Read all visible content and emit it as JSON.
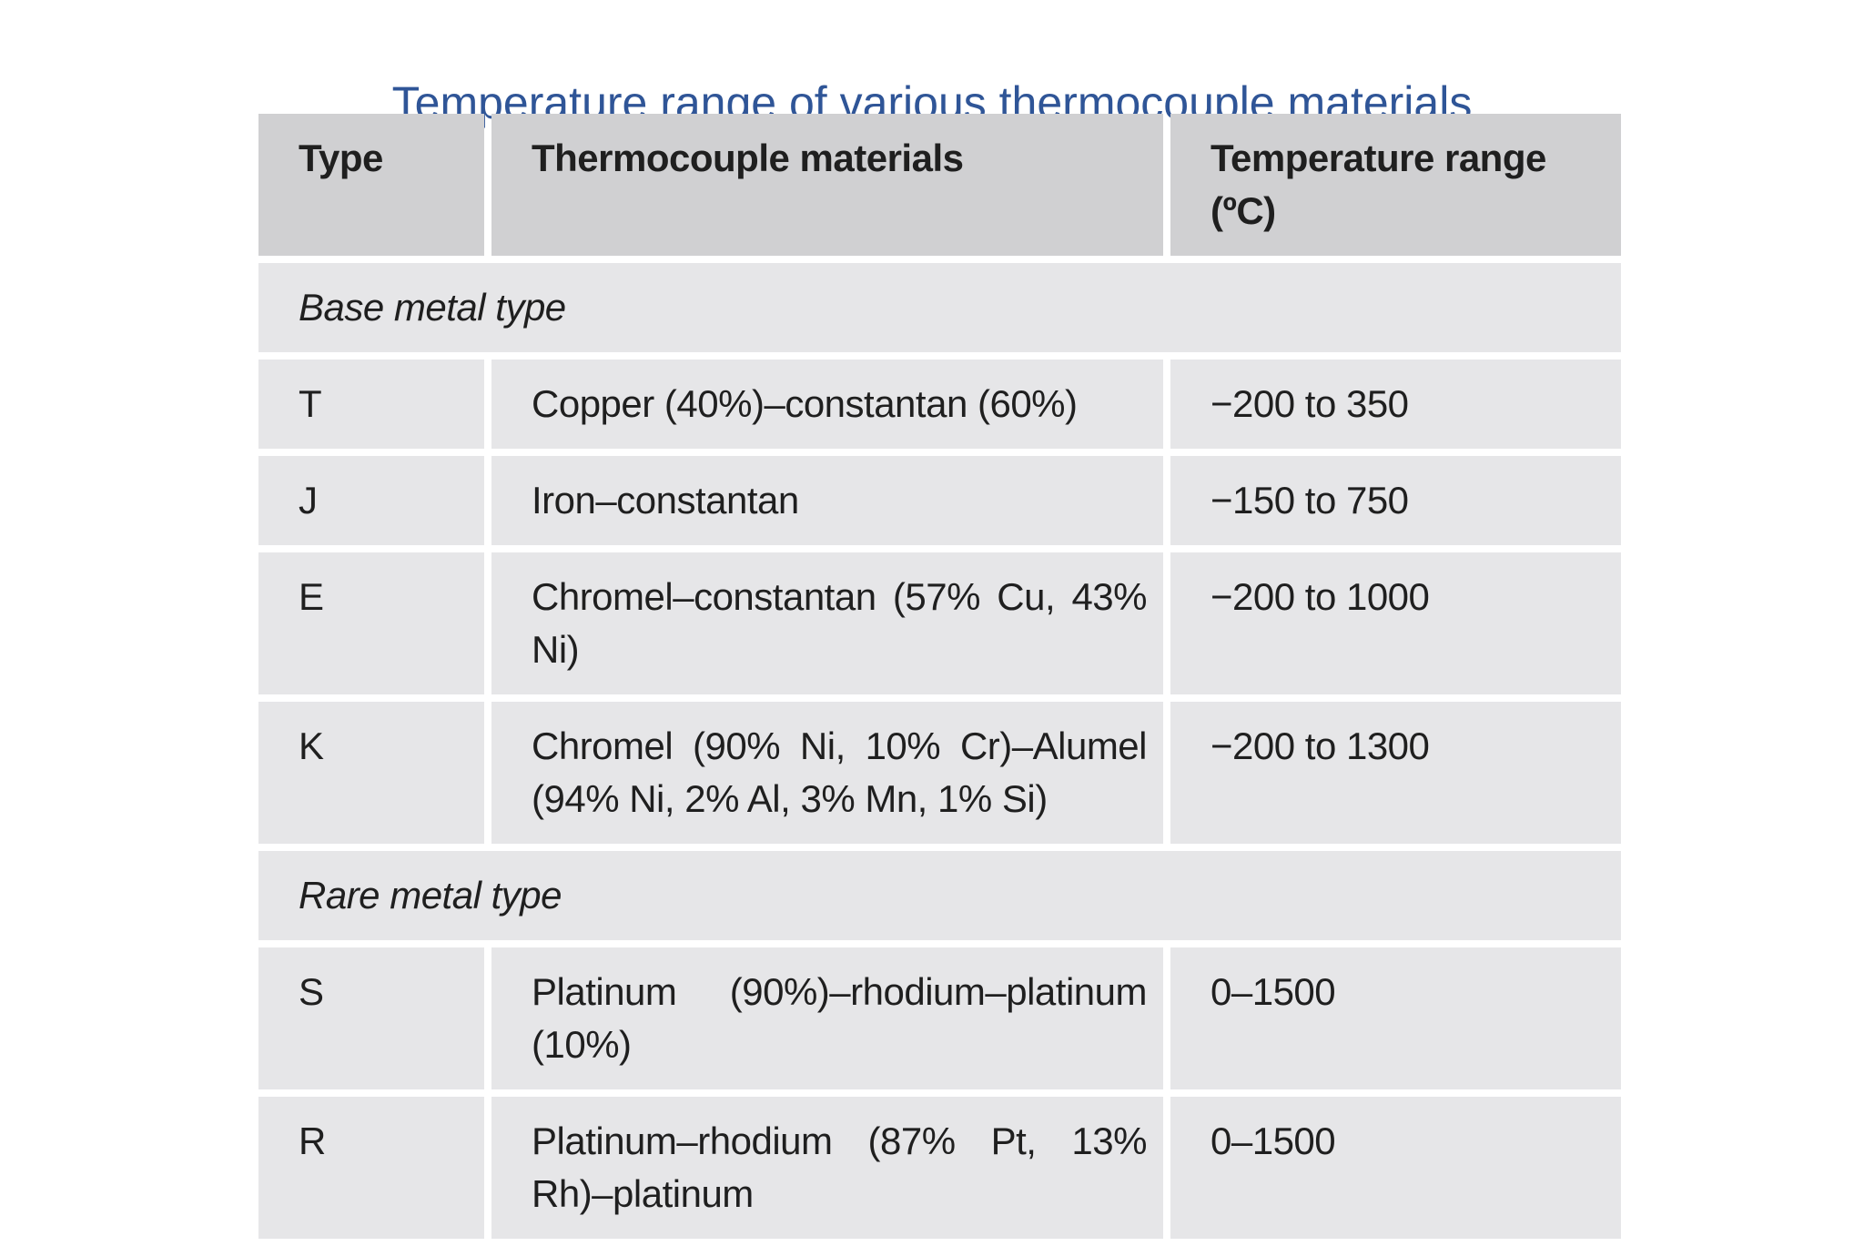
{
  "slide": {
    "title": "Temperature range of various thermocouple materials"
  },
  "table": {
    "headers": {
      "type": "Type",
      "materials": "Thermocouple materials",
      "range": "Temperature range (ºC)"
    },
    "groups": {
      "base": "Base metal type",
      "rare": "Rare metal type"
    },
    "rows": [
      {
        "type": "T",
        "materials": "Copper (40%)–constantan (60%)",
        "range": "−200 to 350"
      },
      {
        "type": "J",
        "materials": "Iron–constantan",
        "range": "−150 to 750"
      },
      {
        "type": "E",
        "materials": "Chromel–constantan (57% Cu, 43% Ni)",
        "range": "−200 to 1000"
      },
      {
        "type": "K",
        "materials": "Chromel (90% Ni, 10% Cr)–Alumel (94% Ni, 2% Al, 3% Mn, 1% Si)",
        "range": "−200 to 1300"
      },
      {
        "type": "S",
        "materials": "Platinum (90%)–rhodium–platinum (10%)",
        "range": "0–1500"
      },
      {
        "type": "R",
        "materials": "Platinum–rhodium (87% Pt, 13% Rh)–platinum",
        "range": "0–1500"
      }
    ]
  }
}
